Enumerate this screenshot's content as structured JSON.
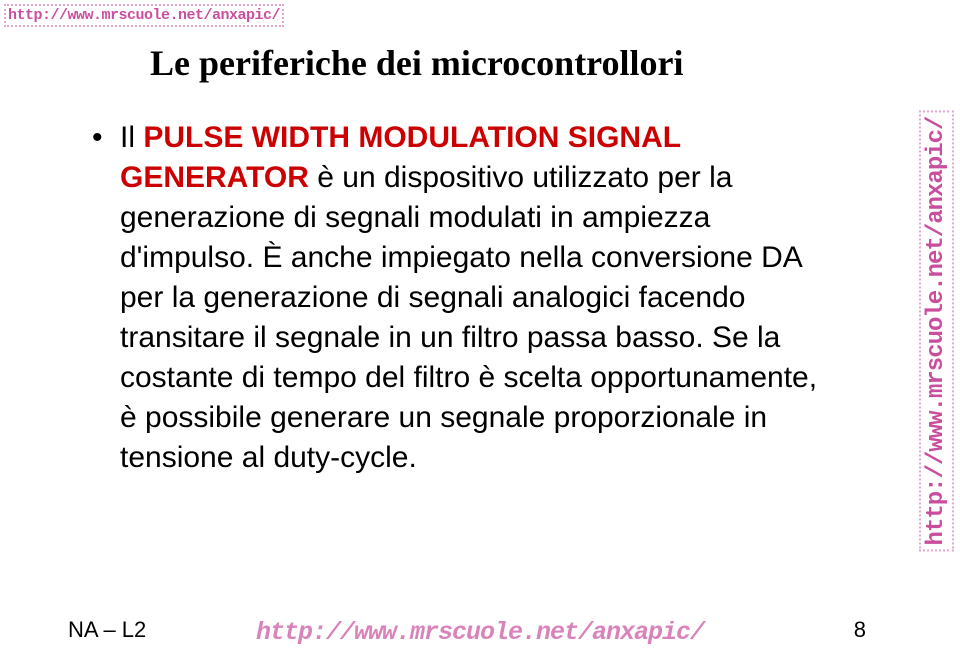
{
  "watermarks": {
    "top": "http://www.mrscuole.net/anxapic/",
    "right": "http://www.mrscuole.net/anxapic/",
    "bottom": "http://www.mrscuole.net/anxapic/"
  },
  "title": "Le periferiche dei microcontrollori",
  "body": {
    "lead": "Il ",
    "keyword": "PULSE WIDTH MODULATION SIGNAL GENERATOR",
    "rest": " è un dispositivo utilizzato per la generazione di segnali modulati in ampiezza d'impulso. È anche impiegato nella conversione DA per la generazione di segnali analogici facendo transitare il segnale in un filtro passa basso. Se la costante di tempo del filtro è scelta opportunamente, è possibile generare un segnale proporzionale in tensione al duty-cycle."
  },
  "footer": {
    "left": "NA – L2",
    "page": "8"
  },
  "colors": {
    "watermark": "#c94f9e",
    "keyword": "#cc0000",
    "text": "#000000",
    "background": "#ffffff"
  }
}
